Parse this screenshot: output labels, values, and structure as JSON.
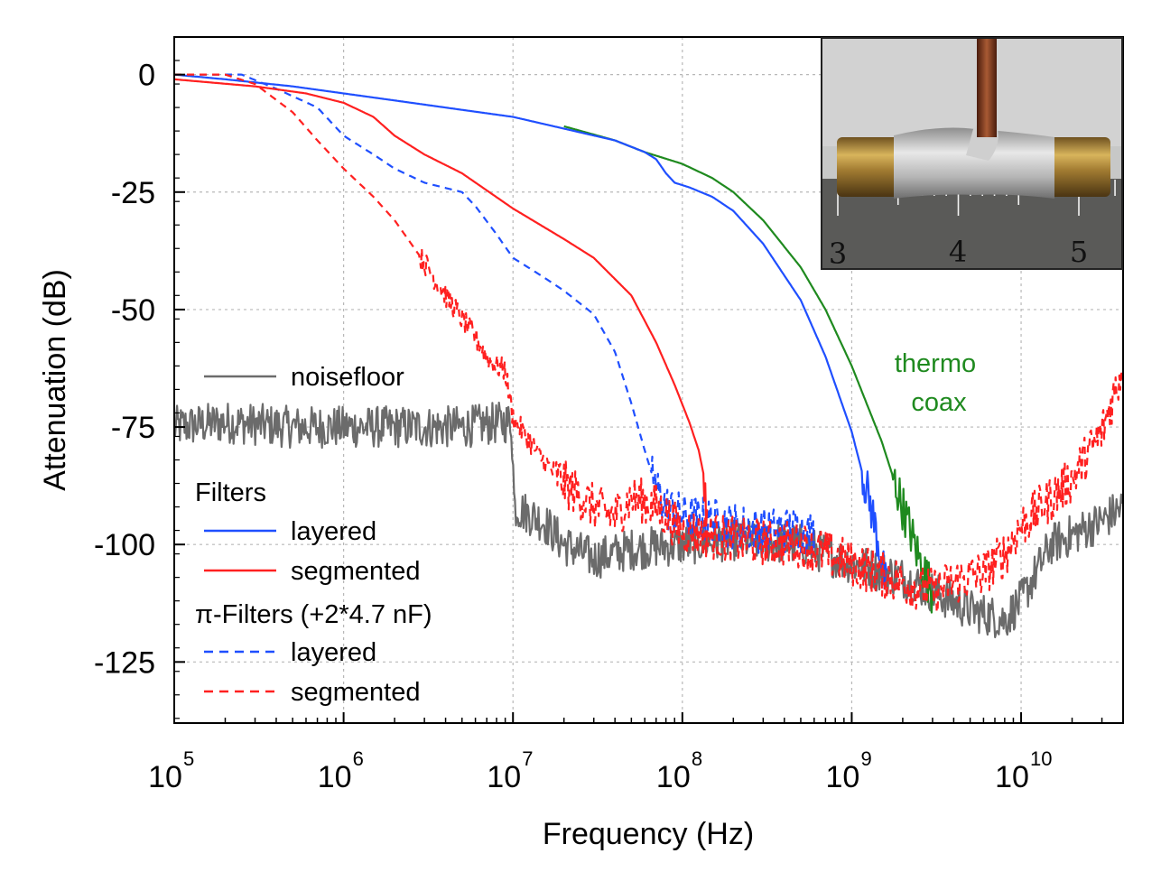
{
  "chart_data": {
    "type": "line",
    "xlabel": "Frequency (Hz)",
    "ylabel": "Attenuation (dB)",
    "x_scale": "log",
    "xlim": [
      100000,
      40000000000
    ],
    "ylim": [
      -138,
      8
    ],
    "x_tick_labels": [
      {
        "x": 100000,
        "base": "10",
        "exp": "5"
      },
      {
        "x": 1000000,
        "base": "10",
        "exp": "6"
      },
      {
        "x": 10000000,
        "base": "10",
        "exp": "7"
      },
      {
        "x": 100000000,
        "base": "10",
        "exp": "8"
      },
      {
        "x": 1000000000,
        "base": "10",
        "exp": "9"
      },
      {
        "x": 10000000000,
        "base": "10",
        "exp": "10"
      }
    ],
    "y_tick_labels": [
      {
        "y": 0,
        "label": "0"
      },
      {
        "y": -25,
        "label": "-25"
      },
      {
        "y": -50,
        "label": "-50"
      },
      {
        "y": -75,
        "label": "-75"
      },
      {
        "y": -100,
        "label": "-100"
      },
      {
        "y": -125,
        "label": "-125"
      }
    ],
    "grid": true,
    "legend": {
      "placement": "left",
      "entries": [
        {
          "label": "noisefloor",
          "color": "#6b6b6b",
          "style": "solid"
        },
        {
          "label": "Filters",
          "header": true
        },
        {
          "label": "layered",
          "color": "#1f4fff",
          "style": "solid"
        },
        {
          "label": "segmented",
          "color": "#ff2020",
          "style": "solid"
        },
        {
          "label": "π-Filters (+2*4.7 nF)",
          "header": true
        },
        {
          "label": "layered",
          "color": "#1f4fff",
          "style": "dashed"
        },
        {
          "label": "segmented",
          "color": "#ff2020",
          "style": "dashed"
        }
      ]
    },
    "annotations": [
      {
        "text": "thermo",
        "color": "#1f8a1f"
      },
      {
        "text": "coax",
        "color": "#1f8a1f"
      }
    ],
    "inset": {
      "type": "photo",
      "ruler_labels": [
        "3",
        "4",
        "5"
      ]
    },
    "series": [
      {
        "key": "filters_layered",
        "color": "#1f4fff",
        "style": "solid",
        "points": [
          [
            100000,
            0
          ],
          [
            200000,
            -1
          ],
          [
            500000,
            -2.5
          ],
          [
            1000000,
            -4
          ],
          [
            2000000,
            -5.5
          ],
          [
            5000000,
            -7.5
          ],
          [
            10000000,
            -9
          ],
          [
            20000000,
            -11.5
          ],
          [
            40000000,
            -14
          ],
          [
            60000000,
            -16.5
          ],
          [
            70000000,
            -18
          ],
          [
            80000000,
            -21
          ],
          [
            90000000,
            -23
          ],
          [
            110000000,
            -24
          ],
          [
            150000000,
            -26
          ],
          [
            200000000,
            -29
          ],
          [
            300000000,
            -36
          ],
          [
            500000000,
            -48
          ],
          [
            700000000,
            -60
          ],
          [
            1000000000,
            -76
          ],
          [
            1300000000,
            -92
          ],
          [
            1500000000,
            -103
          ],
          [
            1600000000,
            -110
          ]
        ]
      },
      {
        "key": "thermocoax",
        "color": "#1f8a1f",
        "style": "solid",
        "points": [
          [
            20000000,
            -11
          ],
          [
            40000000,
            -14
          ],
          [
            60000000,
            -16.5
          ],
          [
            100000000,
            -19
          ],
          [
            150000000,
            -22
          ],
          [
            200000000,
            -25
          ],
          [
            300000000,
            -31
          ],
          [
            500000000,
            -41
          ],
          [
            700000000,
            -50
          ],
          [
            1000000000,
            -62
          ],
          [
            1500000000,
            -78
          ],
          [
            2000000000,
            -92
          ],
          [
            2500000000,
            -103
          ],
          [
            3000000000,
            -110
          ]
        ]
      },
      {
        "key": "filters_segmented",
        "color": "#ff2020",
        "style": "solid",
        "points": [
          [
            100000,
            -1
          ],
          [
            300000,
            -2.5
          ],
          [
            600000,
            -4
          ],
          [
            1000000,
            -6
          ],
          [
            1500000,
            -9
          ],
          [
            2000000,
            -13
          ],
          [
            3000000,
            -17
          ],
          [
            5000000,
            -21
          ],
          [
            10000000,
            -28.5
          ],
          [
            20000000,
            -35
          ],
          [
            30000000,
            -39
          ],
          [
            50000000,
            -47
          ],
          [
            70000000,
            -57
          ],
          [
            90000000,
            -66
          ],
          [
            110000000,
            -74
          ],
          [
            125000000,
            -80
          ],
          [
            135000000,
            -86
          ],
          [
            140000000,
            -94
          ]
        ]
      },
      {
        "key": "pi_layered",
        "color": "#1f4fff",
        "style": "dashed",
        "points": [
          [
            100000,
            0
          ],
          [
            250000,
            0
          ],
          [
            400000,
            -3
          ],
          [
            700000,
            -7
          ],
          [
            1000000,
            -13
          ],
          [
            1500000,
            -17
          ],
          [
            2000000,
            -20
          ],
          [
            3000000,
            -23
          ],
          [
            5000000,
            -25
          ],
          [
            6000000,
            -28
          ],
          [
            8000000,
            -34
          ],
          [
            10000000,
            -39
          ],
          [
            15000000,
            -43
          ],
          [
            20000000,
            -46
          ],
          [
            30000000,
            -51
          ],
          [
            40000000,
            -59
          ],
          [
            50000000,
            -70
          ],
          [
            60000000,
            -80
          ],
          [
            70000000,
            -88
          ],
          [
            80000000,
            -92
          ],
          [
            100000000,
            -94
          ],
          [
            150000000,
            -95
          ],
          [
            200000000,
            -96
          ],
          [
            300000000,
            -97
          ],
          [
            500000000,
            -97
          ],
          [
            600000000,
            -98
          ]
        ]
      },
      {
        "key": "pi_segmented",
        "color": "#ff2020",
        "style": "dashed",
        "points": [
          [
            100000,
            0
          ],
          [
            200000,
            0
          ],
          [
            300000,
            -2
          ],
          [
            500000,
            -8
          ],
          [
            700000,
            -14
          ],
          [
            1000000,
            -20
          ],
          [
            1500000,
            -26
          ],
          [
            2000000,
            -31
          ],
          [
            3000000,
            -40
          ],
          [
            4000000,
            -47
          ],
          [
            5000000,
            -52
          ],
          [
            6000000,
            -56
          ],
          [
            7000000,
            -60
          ],
          [
            8000000,
            -62
          ],
          [
            9000000,
            -63
          ],
          [
            10000000,
            -73
          ],
          [
            15000000,
            -82
          ],
          [
            20000000,
            -87
          ],
          [
            30000000,
            -92
          ],
          [
            40000000,
            -94
          ],
          [
            50000000,
            -90
          ],
          [
            70000000,
            -92
          ],
          [
            100000000,
            -97
          ],
          [
            200000000,
            -99
          ],
          [
            500000000,
            -100
          ],
          [
            1000000000,
            -104
          ],
          [
            2000000000,
            -108
          ],
          [
            3000000000,
            -110
          ],
          [
            4000000000,
            -108
          ],
          [
            6000000000,
            -106
          ],
          [
            8000000000,
            -102
          ],
          [
            10000000000,
            -96
          ],
          [
            20000000000,
            -86
          ],
          [
            30000000000,
            -76
          ],
          [
            40000000000,
            -62
          ]
        ]
      },
      {
        "key": "noisefloor",
        "color": "#6b6b6b",
        "style": "solid",
        "points": [
          [
            100000,
            -75
          ],
          [
            200000,
            -74
          ],
          [
            500000,
            -75
          ],
          [
            1000000,
            -75
          ],
          [
            2000000,
            -75
          ],
          [
            5000000,
            -75
          ],
          [
            9000000,
            -74
          ],
          [
            9800000,
            -74
          ],
          [
            10200000,
            -92
          ],
          [
            15000000,
            -95
          ],
          [
            20000000,
            -100
          ],
          [
            30000000,
            -103
          ],
          [
            50000000,
            -101
          ],
          [
            100000000,
            -100
          ],
          [
            200000000,
            -99
          ],
          [
            500000000,
            -100
          ],
          [
            1000000000,
            -104
          ],
          [
            2000000000,
            -107
          ],
          [
            3000000000,
            -110
          ],
          [
            5000000000,
            -114
          ],
          [
            8000000000,
            -116
          ],
          [
            10000000000,
            -112
          ],
          [
            15000000000,
            -100
          ],
          [
            20000000000,
            -98
          ],
          [
            30000000000,
            -95
          ],
          [
            40000000000,
            -92
          ]
        ]
      }
    ]
  }
}
